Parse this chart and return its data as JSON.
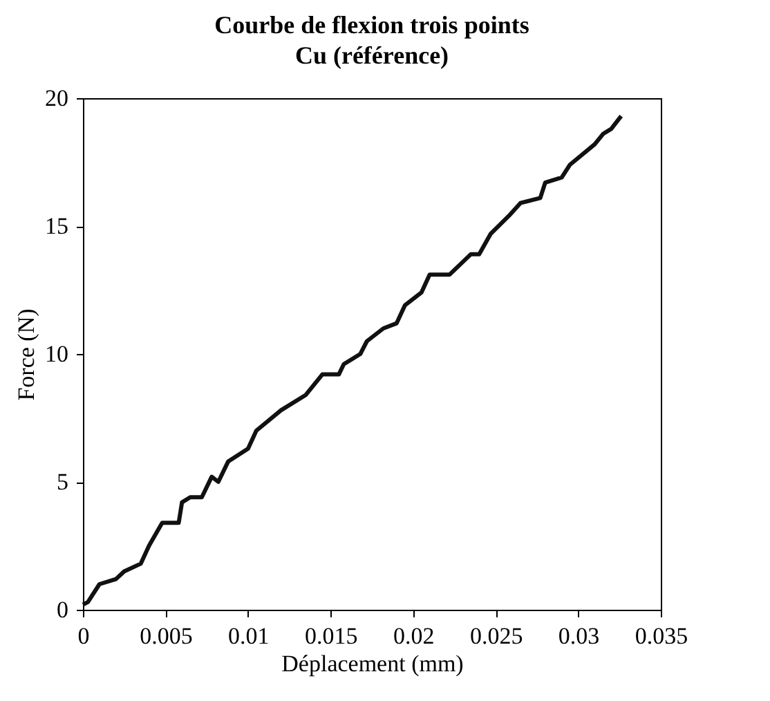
{
  "chart_data": {
    "type": "line",
    "title": "Courbe de flexion trois points",
    "subtitle": "Cu (référence)",
    "xlabel": "Déplacement (mm)",
    "ylabel": "Force (N)",
    "xlim": [
      0,
      0.035
    ],
    "xticks": [
      0,
      0.005,
      0.01,
      0.015,
      0.02,
      0.025,
      0.03,
      0.035
    ],
    "ylim": [
      0,
      20
    ],
    "yticks": [
      0,
      5,
      10,
      15,
      20
    ],
    "grid": false,
    "line_style": "solid",
    "series": [
      {
        "color": "#111111",
        "x": [
          0,
          0.0003,
          0.001,
          0.002,
          0.0025,
          0.0035,
          0.004,
          0.0048,
          0.0058,
          0.006,
          0.0065,
          0.0072,
          0.0078,
          0.0082,
          0.0088,
          0.01,
          0.0105,
          0.012,
          0.0135,
          0.0145,
          0.0155,
          0.0158,
          0.0168,
          0.0172,
          0.0182,
          0.019,
          0.0195,
          0.0205,
          0.021,
          0.0222,
          0.0235,
          0.024,
          0.0247,
          0.0258,
          0.0265,
          0.0277,
          0.028,
          0.029,
          0.0295,
          0.031,
          0.0315,
          0.032,
          0.0326
        ],
        "values": [
          0.2,
          0.3,
          1.0,
          1.2,
          1.5,
          1.8,
          2.5,
          3.4,
          3.4,
          4.2,
          4.4,
          4.4,
          5.2,
          5.0,
          5.8,
          6.3,
          7.0,
          7.8,
          8.4,
          9.2,
          9.2,
          9.6,
          10.0,
          10.5,
          11.0,
          11.2,
          11.9,
          12.4,
          13.1,
          13.1,
          13.9,
          13.9,
          14.7,
          15.4,
          15.9,
          16.1,
          16.7,
          16.9,
          17.4,
          18.2,
          18.6,
          18.8,
          19.3
        ]
      }
    ]
  }
}
